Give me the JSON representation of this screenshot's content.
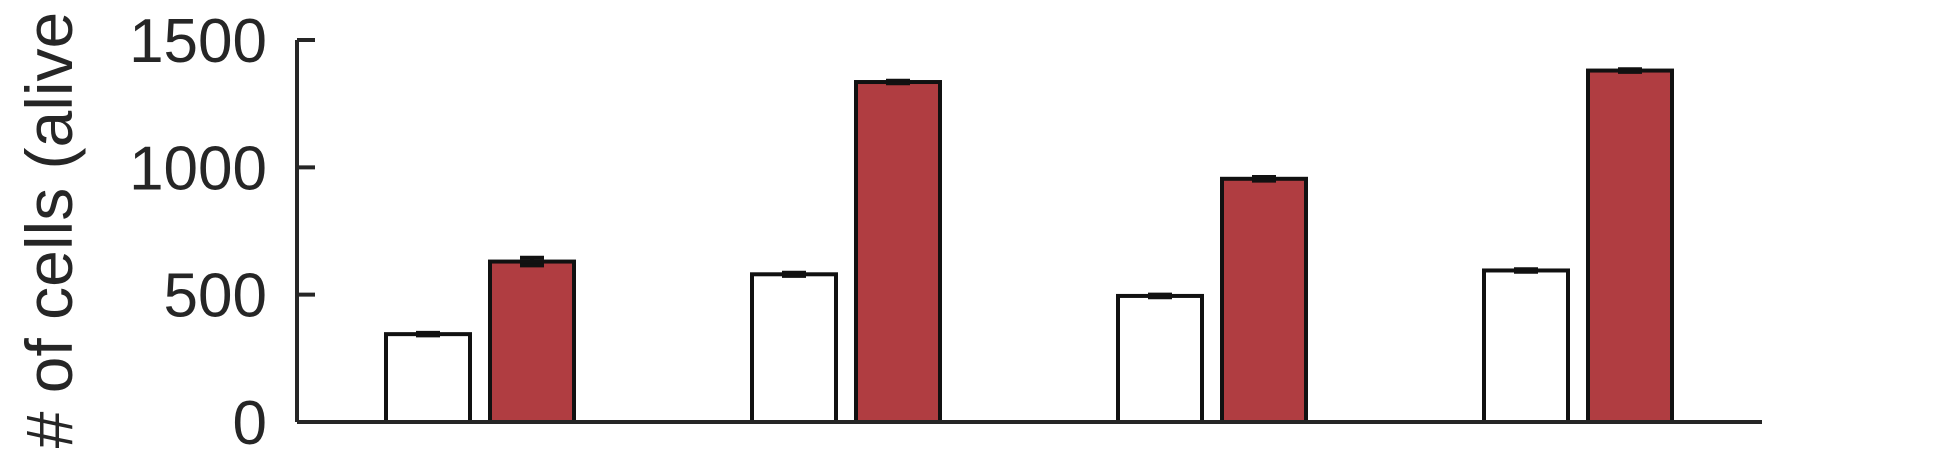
{
  "chart_data": {
    "type": "bar",
    "title": "",
    "xlabel": "",
    "ylabel": "# of cells (alive",
    "ylim": [
      0,
      1500
    ],
    "yticks": [
      0,
      500,
      1000,
      1500
    ],
    "categories": [
      "",
      "",
      "",
      ""
    ],
    "series": [
      {
        "color": "#ffffff",
        "values": [
          345,
          580,
          495,
          595
        ],
        "errors": [
          5,
          6,
          5,
          5
        ]
      },
      {
        "color": "#b03d41",
        "values": [
          630,
          1335,
          955,
          1380
        ],
        "errors": [
          15,
          5,
          7,
          5
        ]
      },
      {
        "color": "#000000",
        "values": [
          5,
          5,
          5,
          5
        ],
        "errors": [
          0,
          0,
          0,
          0
        ]
      }
    ],
    "grid": false,
    "legend": "none"
  }
}
